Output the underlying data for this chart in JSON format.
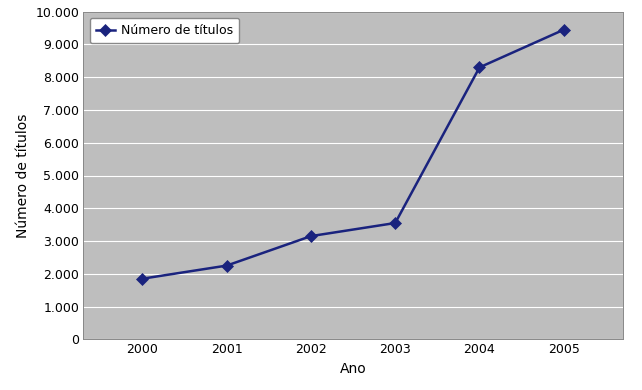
{
  "years": [
    2000,
    2001,
    2002,
    2003,
    2004,
    2005
  ],
  "values": [
    1850,
    2250,
    3150,
    3550,
    8300,
    9450
  ],
  "line_color": "#1a237e",
  "marker": "D",
  "marker_size": 6,
  "marker_color": "#1a237e",
  "xlabel": "Ano",
  "ylabel": "Número de títulos",
  "ylim": [
    0,
    10000
  ],
  "yticks": [
    0,
    1000,
    2000,
    3000,
    4000,
    5000,
    6000,
    7000,
    8000,
    9000,
    10000
  ],
  "ytick_labels": [
    "0",
    "1.000",
    "2.000",
    "3.000",
    "4.000",
    "5.000",
    "6.000",
    "7.000",
    "8.000",
    "9.000",
    "10.000"
  ],
  "legend_label": "Número de títulos",
  "plot_bg_color": "#bebebe",
  "outer_bg": "#ffffff",
  "grid_color": "#ffffff",
  "line_width": 1.8,
  "xlabel_fontsize": 10,
  "ylabel_fontsize": 10,
  "tick_fontsize": 9,
  "legend_fontsize": 9,
  "xlim_left": 1999.3,
  "xlim_right": 2005.7
}
